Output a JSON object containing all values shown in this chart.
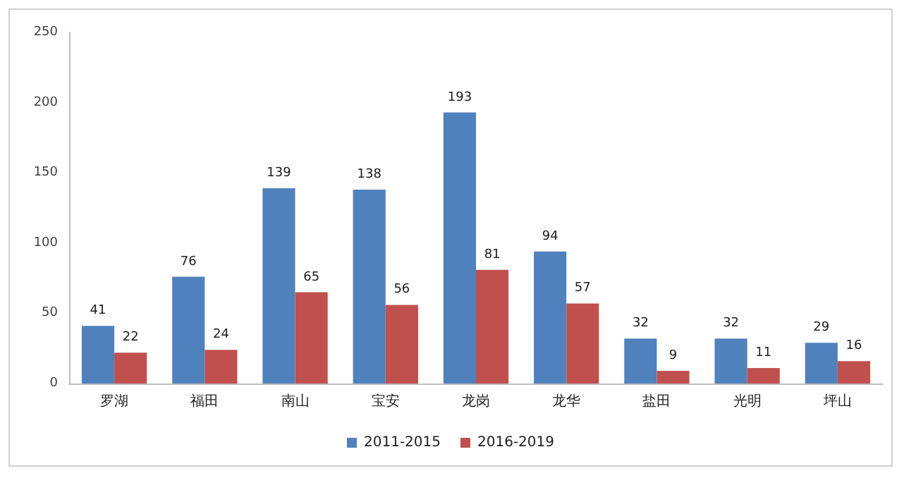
{
  "chart_data": {
    "type": "bar",
    "categories": [
      "罗湖",
      "福田",
      "南山",
      "宝安",
      "龙岗",
      "龙华",
      "盐田",
      "光明",
      "坪山"
    ],
    "series": [
      {
        "name": "2011-2015",
        "color": "#4f81bd",
        "values": [
          41,
          76,
          139,
          138,
          193,
          94,
          32,
          32,
          29
        ]
      },
      {
        "name": "2016-2019",
        "color": "#c0504d",
        "values": [
          22,
          24,
          65,
          56,
          81,
          57,
          9,
          11,
          16
        ]
      }
    ],
    "ylim": [
      0,
      250
    ],
    "yticks": [
      0,
      50,
      100,
      150,
      200,
      250
    ],
    "grid": false,
    "legend": "bottom",
    "data_labels": true
  }
}
